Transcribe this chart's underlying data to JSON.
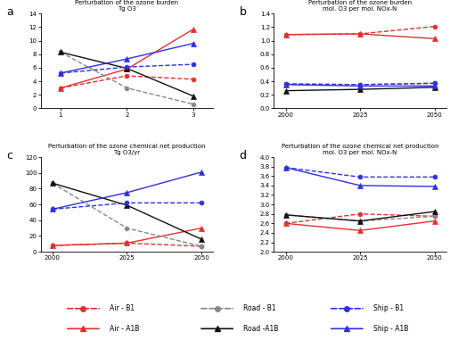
{
  "panel_a": {
    "title": "Perturbation of the ozone burden\nTg O3",
    "xlabel_ticks": [
      1,
      2,
      3
    ],
    "ylim": [
      0,
      14
    ],
    "yticks": [
      0,
      2,
      4,
      6,
      8,
      10,
      12,
      14
    ],
    "series": {
      "air_b1": {
        "x": [
          1,
          2,
          3
        ],
        "y": [
          3.0,
          4.8,
          4.3
        ],
        "color": "#e03030",
        "ls": "--",
        "marker": "o",
        "ms": 3.5
      },
      "air_a1b": {
        "x": [
          1,
          2,
          3
        ],
        "y": [
          3.0,
          5.8,
          11.7
        ],
        "color": "#e03030",
        "ls": "-",
        "marker": "^",
        "ms": 4
      },
      "road_b1": {
        "x": [
          1,
          2,
          3
        ],
        "y": [
          8.3,
          3.0,
          0.6
        ],
        "color": "#888888",
        "ls": "--",
        "marker": "o",
        "ms": 3.5
      },
      "road_a1b": {
        "x": [
          1,
          2,
          3
        ],
        "y": [
          8.3,
          5.9,
          1.8
        ],
        "color": "#111111",
        "ls": "-",
        "marker": "^",
        "ms": 4
      },
      "ship_b1": {
        "x": [
          1,
          2,
          3
        ],
        "y": [
          5.2,
          6.1,
          6.5
        ],
        "color": "#3030e0",
        "ls": "--",
        "marker": "o",
        "ms": 3.5
      },
      "ship_a1b": {
        "x": [
          1,
          2,
          3
        ],
        "y": [
          5.2,
          7.3,
          9.6
        ],
        "color": "#3030e0",
        "ls": "-",
        "marker": "^",
        "ms": 4
      }
    }
  },
  "panel_b": {
    "title": "Perturbation of the ozone burden\nmol. O3 per mol. NOx-N",
    "xlabel_ticks": [
      2000,
      2025,
      2050
    ],
    "ylim": [
      0.0,
      1.4
    ],
    "yticks": [
      0.0,
      0.2,
      0.4,
      0.6,
      0.8,
      1.0,
      1.2,
      1.4
    ],
    "series": {
      "air_b1": {
        "x": [
          2000,
          2025,
          2050
        ],
        "y": [
          1.09,
          1.1,
          1.21
        ],
        "color": "#e03030",
        "ls": "--",
        "marker": "o",
        "ms": 3.5
      },
      "air_a1b": {
        "x": [
          2000,
          2025,
          2050
        ],
        "y": [
          1.09,
          1.1,
          1.03
        ],
        "color": "#e03030",
        "ls": "-",
        "marker": "^",
        "ms": 4
      },
      "road_b1": {
        "x": [
          2000,
          2025,
          2050
        ],
        "y": [
          0.36,
          0.35,
          0.37
        ],
        "color": "#888888",
        "ls": "--",
        "marker": "o",
        "ms": 3.5
      },
      "road_a1b": {
        "x": [
          2000,
          2025,
          2050
        ],
        "y": [
          0.26,
          0.28,
          0.31
        ],
        "color": "#111111",
        "ls": "-",
        "marker": "^",
        "ms": 4
      },
      "ship_b1": {
        "x": [
          2000,
          2025,
          2050
        ],
        "y": [
          0.36,
          0.35,
          0.37
        ],
        "color": "#3030e0",
        "ls": "--",
        "marker": "o",
        "ms": 3.5
      },
      "ship_a1b": {
        "x": [
          2000,
          2025,
          2050
        ],
        "y": [
          0.35,
          0.33,
          0.33
        ],
        "color": "#3030e0",
        "ls": "-",
        "marker": "^",
        "ms": 4
      }
    }
  },
  "panel_c": {
    "title": "Perturbation of the ozone chemical net production\nTg O3/yr",
    "xlabel_ticks": [
      2000,
      2025,
      2050
    ],
    "ylim": [
      0,
      120
    ],
    "yticks": [
      0,
      20,
      40,
      60,
      80,
      100,
      120
    ],
    "series": {
      "air_b1": {
        "x": [
          2000,
          2025,
          2050
        ],
        "y": [
          8.0,
          11.0,
          7.0
        ],
        "color": "#e03030",
        "ls": "--",
        "marker": "o",
        "ms": 3.5
      },
      "air_a1b": {
        "x": [
          2000,
          2025,
          2050
        ],
        "y": [
          8.0,
          11.0,
          30.0
        ],
        "color": "#e03030",
        "ls": "-",
        "marker": "^",
        "ms": 4
      },
      "road_b1": {
        "x": [
          2000,
          2025,
          2050
        ],
        "y": [
          87.0,
          30.0,
          7.0
        ],
        "color": "#888888",
        "ls": "--",
        "marker": "o",
        "ms": 3.5
      },
      "road_a1b": {
        "x": [
          2000,
          2025,
          2050
        ],
        "y": [
          87.0,
          59.0,
          16.0
        ],
        "color": "#111111",
        "ls": "-",
        "marker": "^",
        "ms": 4
      },
      "ship_b1": {
        "x": [
          2000,
          2025,
          2050
        ],
        "y": [
          54.0,
          62.0,
          62.0
        ],
        "color": "#3030e0",
        "ls": "--",
        "marker": "o",
        "ms": 3.5
      },
      "ship_a1b": {
        "x": [
          2000,
          2025,
          2050
        ],
        "y": [
          54.0,
          75.0,
          101.0
        ],
        "color": "#3030e0",
        "ls": "-",
        "marker": "^",
        "ms": 4
      }
    }
  },
  "panel_d": {
    "title": "Perturbation of the ozone chemical net production\nmol. O3 per mol. NOx-N",
    "xlabel_ticks": [
      2000,
      2025,
      2050
    ],
    "ylim": [
      2.0,
      4.0
    ],
    "yticks": [
      2.0,
      2.2,
      2.4,
      2.6,
      2.8,
      3.0,
      3.2,
      3.4,
      3.6,
      3.8,
      4.0
    ],
    "series": {
      "air_b1": {
        "x": [
          2000,
          2025,
          2050
        ],
        "y": [
          2.6,
          2.8,
          2.75
        ],
        "color": "#e03030",
        "ls": "--",
        "marker": "o",
        "ms": 3.5
      },
      "air_a1b": {
        "x": [
          2000,
          2025,
          2050
        ],
        "y": [
          2.6,
          2.45,
          2.65
        ],
        "color": "#e03030",
        "ls": "-",
        "marker": "^",
        "ms": 4
      },
      "road_b1": {
        "x": [
          2000,
          2025,
          2050
        ],
        "y": [
          2.78,
          2.65,
          2.75
        ],
        "color": "#888888",
        "ls": "--",
        "marker": "o",
        "ms": 3.5
      },
      "road_a1b": {
        "x": [
          2000,
          2025,
          2050
        ],
        "y": [
          2.78,
          2.65,
          2.85
        ],
        "color": "#111111",
        "ls": "-",
        "marker": "^",
        "ms": 4
      },
      "ship_b1": {
        "x": [
          2000,
          2025,
          2050
        ],
        "y": [
          3.78,
          3.58,
          3.58
        ],
        "color": "#3030e0",
        "ls": "--",
        "marker": "o",
        "ms": 3.5
      },
      "ship_a1b": {
        "x": [
          2000,
          2025,
          2050
        ],
        "y": [
          3.78,
          3.4,
          3.38
        ],
        "color": "#3030e0",
        "ls": "-",
        "marker": "^",
        "ms": 4
      }
    }
  },
  "legend": [
    {
      "label": "Air - B1",
      "color": "#e03030",
      "ls": "--",
      "marker": "o"
    },
    {
      "label": "Road - B1",
      "color": "#888888",
      "ls": "--",
      "marker": "o"
    },
    {
      "label": "Ship - B1",
      "color": "#3030e0",
      "ls": "--",
      "marker": "o"
    },
    {
      "label": "Air - A1B",
      "color": "#e03030",
      "ls": "-",
      "marker": "^"
    },
    {
      "label": "Road -A1B",
      "color": "#111111",
      "ls": "-",
      "marker": "^"
    },
    {
      "label": "Ship - A1B",
      "color": "#3030e0",
      "ls": "-",
      "marker": "^"
    }
  ]
}
